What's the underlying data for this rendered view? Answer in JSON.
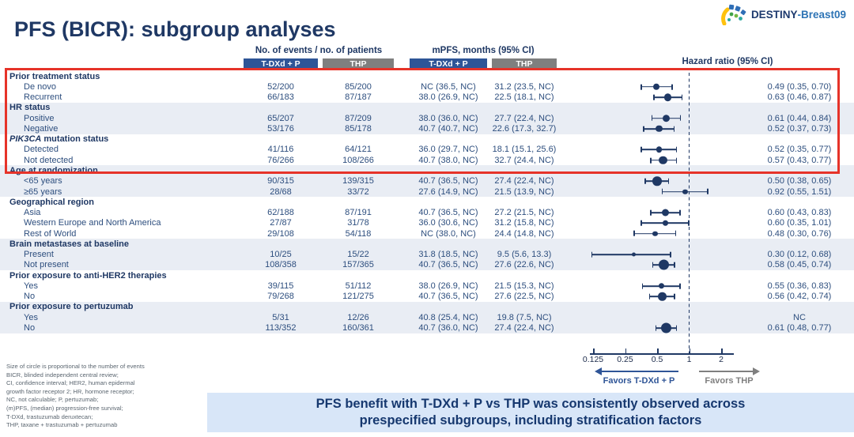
{
  "logo": {
    "brand_bold": "DESTINY",
    "brand_rest": "-Breast09"
  },
  "title": "PFS (BICR): subgroup analyses",
  "header": {
    "events_group": "No. of events / no. of patients",
    "mpfs_group": "mPFS, months (95% CI)",
    "hr_group": "Hazard ratio (95% CI)",
    "arm1": "T-DXd + P",
    "arm2": "THP"
  },
  "chart_data": {
    "type": "scatter",
    "subtype": "forest-plot",
    "x_axis": {
      "scale": "log2",
      "ticks": [
        0.125,
        0.25,
        0.5,
        1,
        2
      ],
      "range": [
        0.125,
        2
      ],
      "reference_line": 1
    },
    "favors_left": "Favors T-DXd + P",
    "favors_right": "Favors THP",
    "note": "Size of circle is proportional to the number of events",
    "groups": [
      {
        "label": "Prior treatment status",
        "shaded": false,
        "rows": [
          {
            "label": "De novo",
            "ev1": "52/200",
            "ev2": "85/200",
            "mpfs1": "NC (36.5, NC)",
            "mpfs2": "31.2 (23.5, NC)",
            "hr_text": "0.49 (0.35, 0.70)",
            "hr": 0.49,
            "lo": 0.35,
            "hi": 0.7,
            "size": 8.5
          },
          {
            "label": "Recurrent",
            "ev1": "66/183",
            "ev2": "87/187",
            "mpfs1": "38.0 (26.9, NC)",
            "mpfs2": "22.5 (18.1, NC)",
            "hr_text": "0.63 (0.46, 0.87)",
            "hr": 0.63,
            "lo": 0.46,
            "hi": 0.87,
            "size": 9.5
          }
        ]
      },
      {
        "label": "HR status",
        "shaded": true,
        "rows": [
          {
            "label": "Positive",
            "ev1": "65/207",
            "ev2": "87/209",
            "mpfs1": "38.0 (36.0, NC)",
            "mpfs2": "27.7 (22.4, NC)",
            "hr_text": "0.61 (0.44, 0.84)",
            "hr": 0.61,
            "lo": 0.44,
            "hi": 0.84,
            "size": 9.5
          },
          {
            "label": "Negative",
            "ev1": "53/176",
            "ev2": "85/178",
            "mpfs1": "40.7 (40.7, NC)",
            "mpfs2": "22.6 (17.3, 32.7)",
            "hr_text": "0.52 (0.37, 0.73)",
            "hr": 0.52,
            "lo": 0.37,
            "hi": 0.73,
            "size": 8.5
          }
        ]
      },
      {
        "label": "mutation status",
        "italic_prefix": "PIK3CA",
        "shaded": false,
        "rows": [
          {
            "label": "Detected",
            "ev1": "41/116",
            "ev2": "64/121",
            "mpfs1": "36.0 (29.7, NC)",
            "mpfs2": "18.1 (15.1, 25.6)",
            "hr_text": "0.52 (0.35, 0.77)",
            "hr": 0.52,
            "lo": 0.35,
            "hi": 0.77,
            "size": 7.5
          },
          {
            "label": "Not detected",
            "ev1": "76/266",
            "ev2": "108/266",
            "mpfs1": "40.7 (38.0, NC)",
            "mpfs2": "32.7 (24.4, NC)",
            "hr_text": "0.57 (0.43, 0.77)",
            "hr": 0.57,
            "lo": 0.43,
            "hi": 0.77,
            "size": 10.5
          }
        ]
      },
      {
        "label": "Age at randomization",
        "shaded": true,
        "rows": [
          {
            "label": "<65 years",
            "ev1": "90/315",
            "ev2": "139/315",
            "mpfs1": "40.7 (36.5, NC)",
            "mpfs2": "27.4 (22.4, NC)",
            "hr_text": "0.50 (0.38, 0.65)",
            "hr": 0.5,
            "lo": 0.38,
            "hi": 0.65,
            "size": 11.5
          },
          {
            "label": "≥65 years",
            "ev1": "28/68",
            "ev2": "33/72",
            "mpfs1": "27.6 (14.9, NC)",
            "mpfs2": "21.5 (13.9, NC)",
            "hr_text": "0.92 (0.55, 1.51)",
            "hr": 0.92,
            "lo": 0.55,
            "hi": 1.51,
            "size": 6.5
          }
        ]
      },
      {
        "label": "Geographical region",
        "shaded": false,
        "rows": [
          {
            "label": "Asia",
            "ev1": "62/188",
            "ev2": "87/191",
            "mpfs1": "40.7 (36.5, NC)",
            "mpfs2": "27.2 (21.5, NC)",
            "hr_text": "0.60 (0.43, 0.83)",
            "hr": 0.6,
            "lo": 0.43,
            "hi": 0.83,
            "size": 9
          },
          {
            "label": "Western Europe and North America",
            "ev1": "27/87",
            "ev2": "31/78",
            "mpfs1": "36.0 (30.6, NC)",
            "mpfs2": "31.2 (15.8, NC)",
            "hr_text": "0.60 (0.35, 1.01)",
            "hr": 0.6,
            "lo": 0.35,
            "hi": 1.01,
            "size": 6.5
          },
          {
            "label": "Rest of World",
            "ev1": "29/108",
            "ev2": "54/118",
            "mpfs1": "NC (38.0, NC)",
            "mpfs2": "24.4 (14.8, NC)",
            "hr_text": "0.48 (0.30, 0.76)",
            "hr": 0.48,
            "lo": 0.3,
            "hi": 0.76,
            "size": 6.5
          }
        ]
      },
      {
        "label": "Brain metastases at baseline",
        "shaded": true,
        "rows": [
          {
            "label": "Present",
            "ev1": "10/25",
            "ev2": "15/22",
            "mpfs1": "31.8 (18.5, NC)",
            "mpfs2": "9.5 (5.6, 13.3)",
            "hr_text": "0.30 (0.12, 0.68)",
            "hr": 0.3,
            "lo": 0.12,
            "hi": 0.68,
            "size": 5
          },
          {
            "label": "Not present",
            "ev1": "108/358",
            "ev2": "157/365",
            "mpfs1": "40.7 (36.5, NC)",
            "mpfs2": "27.6 (22.6, NC)",
            "hr_text": "0.58 (0.45, 0.74)",
            "hr": 0.58,
            "lo": 0.45,
            "hi": 0.74,
            "size": 13
          }
        ]
      },
      {
        "label": "Prior exposure to anti-HER2 therapies",
        "shaded": false,
        "rows": [
          {
            "label": "Yes",
            "ev1": "39/115",
            "ev2": "51/112",
            "mpfs1": "38.0 (26.9, NC)",
            "mpfs2": "21.5 (15.3, NC)",
            "hr_text": "0.55 (0.36, 0.83)",
            "hr": 0.55,
            "lo": 0.36,
            "hi": 0.83,
            "size": 7.5
          },
          {
            "label": "No",
            "ev1": "79/268",
            "ev2": "121/275",
            "mpfs1": "40.7 (36.5, NC)",
            "mpfs2": "27.6 (22.5, NC)",
            "hr_text": "0.56 (0.42, 0.74)",
            "hr": 0.56,
            "lo": 0.42,
            "hi": 0.74,
            "size": 10.5
          }
        ]
      },
      {
        "label": "Prior exposure to pertuzumab",
        "shaded": true,
        "rows": [
          {
            "label": "Yes",
            "ev1": "5/31",
            "ev2": "12/26",
            "mpfs1": "40.8 (25.4, NC)",
            "mpfs2": "19.8 (7.5, NC)",
            "hr_text": "NC",
            "hr": null,
            "lo": null,
            "hi": null,
            "size": null
          },
          {
            "label": "No",
            "ev1": "113/352",
            "ev2": "160/361",
            "mpfs1": "40.7 (36.0, NC)",
            "mpfs2": "27.4 (22.4, NC)",
            "hr_text": "0.61 (0.48, 0.77)",
            "hr": 0.61,
            "lo": 0.48,
            "hi": 0.77,
            "size": 13
          }
        ]
      }
    ]
  },
  "footnotes": [
    "Size of circle is proportional to the number of events",
    "BICR, blinded independent central review;",
    "CI, confidence interval; HER2, human epidermal",
    "growth factor receptor 2; HR, hormone receptor;",
    "NC, not calculable; P, pertuzumab;",
    "(m)PFS, (median) progression-free survival;",
    "T-DXd, trastuzumab deruxtecan;",
    "THP, taxane + trastuzumab + pertuzumab"
  ],
  "banner": {
    "line1": "PFS benefit with T-DXd + P vs THP was consistently observed across",
    "line2": "prespecified subgroups, including stratification factors"
  },
  "colors": {
    "navy": "#1F3864",
    "table_text": "#2D4E7E",
    "bar_blue": "#2E5597",
    "bar_gray": "#7F7F7F",
    "row_shade": "#E9EDF4",
    "highlight_red": "#E63329",
    "banner_bg": "#D8E6F8",
    "marker": "#1F3864"
  }
}
